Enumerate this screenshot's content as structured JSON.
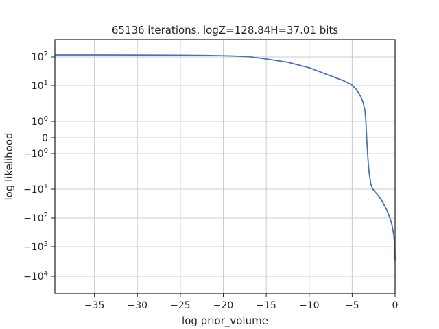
{
  "chart_data": {
    "type": "line",
    "title": "65136 iterations. logZ=128.84H=37.01 bits",
    "xlabel": "log prior_volume",
    "ylabel": "log likelihood",
    "xlim": [
      -39.6,
      0
    ],
    "yscale": "symlog",
    "grid": true,
    "line_color": "#4c72b0",
    "x_ticks": [
      {
        "value": -35,
        "label": "−35"
      },
      {
        "value": -30,
        "label": "−30"
      },
      {
        "value": -25,
        "label": "−25"
      },
      {
        "value": -20,
        "label": "−20"
      },
      {
        "value": -15,
        "label": "−15"
      },
      {
        "value": -10,
        "label": "−10"
      },
      {
        "value": -5,
        "label": "−5"
      },
      {
        "value": 0,
        "label": "0"
      }
    ],
    "y_ticks": [
      {
        "value": 100,
        "base": "10",
        "exp": "2",
        "sign": ""
      },
      {
        "value": 10,
        "base": "10",
        "exp": "1",
        "sign": ""
      },
      {
        "value": 1,
        "base": "10",
        "exp": "0",
        "sign": ""
      },
      {
        "value": 0,
        "base": "0",
        "exp": "",
        "sign": ""
      },
      {
        "value": -1,
        "base": "10",
        "exp": "0",
        "sign": "−"
      },
      {
        "value": -10,
        "base": "10",
        "exp": "1",
        "sign": "−"
      },
      {
        "value": -100,
        "base": "10",
        "exp": "2",
        "sign": "−"
      },
      {
        "value": -1000,
        "base": "10",
        "exp": "3",
        "sign": "−"
      },
      {
        "value": -10000,
        "base": "10",
        "exp": "4",
        "sign": "−"
      }
    ],
    "series": [
      {
        "x": [
          -39.6,
          -35,
          -30,
          -25,
          -22,
          -19,
          -17,
          -15,
          -12.5,
          -10,
          -8,
          -6,
          -5,
          -4.5,
          -4,
          -3.7,
          -3.5,
          -3.4,
          -3.3,
          -3.2,
          -3.1,
          -3.0,
          -2.9,
          -2.85,
          -2.8,
          -2.6,
          -2.0,
          -1.5,
          -1.0,
          -0.6,
          -0.35,
          -0.15,
          -0.03,
          0
        ],
        "y": [
          150,
          150,
          148,
          142,
          135,
          122,
          105,
          85,
          65,
          42,
          25,
          15,
          10.5,
          7.8,
          5.0,
          3.2,
          2.0,
          1.0,
          -0.1,
          -1.0,
          -2.2,
          -3.8,
          -5.5,
          -6.5,
          -7.5,
          -10,
          -16,
          -26,
          -50,
          -100,
          -180,
          -400,
          -1000,
          -3000
        ]
      }
    ]
  }
}
